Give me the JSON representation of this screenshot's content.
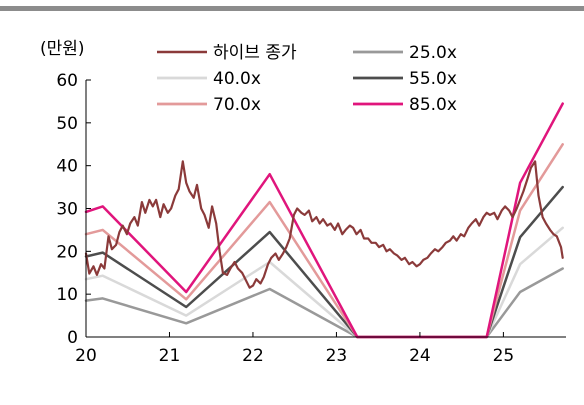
{
  "chart_data": {
    "type": "line",
    "title": "",
    "ylabel": "(만원)",
    "xlabel": "",
    "ylim": [
      0,
      60
    ],
    "xlim": [
      2020.0,
      2025.75
    ],
    "yticks": [
      0,
      10,
      20,
      30,
      40,
      50,
      60
    ],
    "ytick_labels": [
      "0",
      "10",
      "20",
      "30",
      "40",
      "50",
      "60"
    ],
    "xticks": [
      2020,
      2021,
      2022,
      2023,
      2024,
      2025
    ],
    "xtick_labels": [
      "20",
      "21",
      "22",
      "23",
      "24",
      "25"
    ],
    "grid": false,
    "legend_position": "top",
    "colors": {
      "top_rule": "#8c8c8c",
      "axis": "#000000"
    },
    "series": [
      {
        "name": "하이브 종가",
        "color": "#8b3a3a",
        "width": 2.2,
        "points": [
          [
            2020.0,
            19.5
          ],
          [
            2020.04,
            14.8
          ],
          [
            2020.09,
            16.5
          ],
          [
            2020.13,
            14.5
          ],
          [
            2020.18,
            17.0
          ],
          [
            2020.22,
            16.0
          ],
          [
            2020.27,
            23.5
          ],
          [
            2020.31,
            20.5
          ],
          [
            2020.36,
            21.5
          ],
          [
            2020.4,
            24.5
          ],
          [
            2020.44,
            26.0
          ],
          [
            2020.49,
            24.0
          ],
          [
            2020.53,
            26.5
          ],
          [
            2020.58,
            28.0
          ],
          [
            2020.62,
            26.0
          ],
          [
            2020.67,
            31.5
          ],
          [
            2020.71,
            29.0
          ],
          [
            2020.76,
            32.0
          ],
          [
            2020.8,
            30.5
          ],
          [
            2020.84,
            32.0
          ],
          [
            2020.89,
            28.0
          ],
          [
            2020.93,
            31.0
          ],
          [
            2020.98,
            29.0
          ],
          [
            2021.02,
            30.0
          ],
          [
            2021.07,
            33.0
          ],
          [
            2021.11,
            34.5
          ],
          [
            2021.16,
            41.0
          ],
          [
            2021.2,
            36.0
          ],
          [
            2021.24,
            34.0
          ],
          [
            2021.29,
            32.5
          ],
          [
            2021.33,
            35.5
          ],
          [
            2021.38,
            30.0
          ],
          [
            2021.42,
            28.5
          ],
          [
            2021.47,
            25.5
          ],
          [
            2021.51,
            30.5
          ],
          [
            2021.56,
            26.5
          ],
          [
            2021.6,
            20.0
          ],
          [
            2021.64,
            15.0
          ],
          [
            2021.69,
            14.5
          ],
          [
            2021.73,
            16.0
          ],
          [
            2021.78,
            17.5
          ],
          [
            2021.82,
            16.0
          ],
          [
            2021.87,
            15.0
          ],
          [
            2021.91,
            13.5
          ],
          [
            2021.96,
            11.5
          ],
          [
            2022.0,
            12.0
          ],
          [
            2022.04,
            13.5
          ],
          [
            2022.09,
            12.5
          ],
          [
            2022.13,
            14.0
          ],
          [
            2022.18,
            17.0
          ],
          [
            2022.22,
            18.5
          ],
          [
            2022.27,
            19.5
          ],
          [
            2022.31,
            18.0
          ],
          [
            2022.36,
            19.5
          ],
          [
            2022.4,
            21.0
          ],
          [
            2022.44,
            23.0
          ],
          [
            2022.49,
            28.5
          ],
          [
            2022.53,
            30.0
          ],
          [
            2022.58,
            29.0
          ],
          [
            2022.62,
            28.5
          ],
          [
            2022.67,
            29.5
          ],
          [
            2022.71,
            27.0
          ],
          [
            2022.76,
            28.0
          ],
          [
            2022.8,
            26.5
          ],
          [
            2022.84,
            27.5
          ],
          [
            2022.89,
            26.0
          ],
          [
            2022.93,
            26.5
          ],
          [
            2022.98,
            25.0
          ],
          [
            2023.02,
            26.5
          ],
          [
            2023.07,
            24.0
          ],
          [
            2023.11,
            25.0
          ],
          [
            2023.16,
            26.0
          ],
          [
            2023.2,
            25.5
          ],
          [
            2023.24,
            24.0
          ],
          [
            2023.29,
            25.0
          ],
          [
            2023.33,
            23.0
          ],
          [
            2023.38,
            23.0
          ],
          [
            2023.42,
            22.0
          ],
          [
            2023.47,
            22.0
          ],
          [
            2023.51,
            21.0
          ],
          [
            2023.56,
            21.5
          ],
          [
            2023.6,
            20.0
          ],
          [
            2023.64,
            20.5
          ],
          [
            2023.69,
            19.5
          ],
          [
            2023.73,
            19.0
          ],
          [
            2023.78,
            18.0
          ],
          [
            2023.82,
            18.5
          ],
          [
            2023.87,
            17.0
          ],
          [
            2023.91,
            17.5
          ],
          [
            2023.96,
            16.5
          ],
          [
            2024.0,
            17.0
          ],
          [
            2024.04,
            18.0
          ],
          [
            2024.09,
            18.5
          ],
          [
            2024.13,
            19.5
          ],
          [
            2024.18,
            20.5
          ],
          [
            2024.22,
            20.0
          ],
          [
            2024.27,
            21.0
          ],
          [
            2024.31,
            22.0
          ],
          [
            2024.36,
            22.5
          ],
          [
            2024.4,
            23.5
          ],
          [
            2024.44,
            22.5
          ],
          [
            2024.49,
            24.0
          ],
          [
            2024.53,
            23.5
          ],
          [
            2024.58,
            25.5
          ],
          [
            2024.62,
            26.5
          ],
          [
            2024.67,
            27.5
          ],
          [
            2024.71,
            26.0
          ],
          [
            2024.76,
            28.0
          ],
          [
            2024.8,
            29.0
          ],
          [
            2024.84,
            28.5
          ],
          [
            2024.89,
            29.0
          ],
          [
            2024.93,
            27.5
          ],
          [
            2024.98,
            29.5
          ],
          [
            2025.02,
            30.5
          ],
          [
            2025.07,
            29.5
          ],
          [
            2025.11,
            28.0
          ],
          [
            2025.16,
            30.0
          ],
          [
            2025.2,
            32.0
          ],
          [
            2025.24,
            34.0
          ],
          [
            2025.29,
            37.0
          ],
          [
            2025.33,
            39.5
          ],
          [
            2025.38,
            41.0
          ],
          [
            2025.42,
            33.0
          ],
          [
            2025.47,
            28.0
          ],
          [
            2025.51,
            26.5
          ],
          [
            2025.56,
            25.0
          ],
          [
            2025.6,
            24.0
          ],
          [
            2025.64,
            23.5
          ],
          [
            2025.69,
            21.0
          ],
          [
            2025.71,
            18.5
          ]
        ]
      },
      {
        "name": "25.0x",
        "color": "#999999",
        "width": 2.5,
        "points": [
          [
            2020.0,
            8.5
          ],
          [
            2020.2,
            9.0
          ],
          [
            2021.2,
            3.2
          ],
          [
            2022.2,
            11.2
          ],
          [
            2023.25,
            0
          ],
          [
            2024.8,
            0
          ],
          [
            2025.2,
            10.5
          ],
          [
            2025.71,
            16.0
          ]
        ]
      },
      {
        "name": "40.0x",
        "color": "#d9d9d9",
        "width": 2.5,
        "points": [
          [
            2020.0,
            13.5
          ],
          [
            2020.2,
            14.3
          ],
          [
            2021.2,
            5.0
          ],
          [
            2022.2,
            17.5
          ],
          [
            2023.25,
            0
          ],
          [
            2024.8,
            0
          ],
          [
            2025.2,
            17.0
          ],
          [
            2025.71,
            25.5
          ]
        ]
      },
      {
        "name": "55.0x",
        "color": "#4d4d4d",
        "width": 2.5,
        "points": [
          [
            2020.0,
            18.8
          ],
          [
            2020.2,
            19.7
          ],
          [
            2021.2,
            7.0
          ],
          [
            2022.2,
            24.5
          ],
          [
            2023.25,
            0
          ],
          [
            2024.8,
            0
          ],
          [
            2025.2,
            23.3
          ],
          [
            2025.71,
            35.0
          ]
        ]
      },
      {
        "name": "70.0x",
        "color": "#e39a9a",
        "width": 2.5,
        "points": [
          [
            2020.0,
            24.0
          ],
          [
            2020.2,
            25.0
          ],
          [
            2021.2,
            8.8
          ],
          [
            2022.2,
            31.5
          ],
          [
            2023.25,
            0
          ],
          [
            2024.8,
            0
          ],
          [
            2025.2,
            29.5
          ],
          [
            2025.71,
            45.0
          ]
        ]
      },
      {
        "name": "85.0x",
        "color": "#e0157c",
        "width": 2.5,
        "points": [
          [
            2020.0,
            29.2
          ],
          [
            2020.2,
            30.5
          ],
          [
            2021.2,
            10.5
          ],
          [
            2022.2,
            38.0
          ],
          [
            2023.25,
            0
          ],
          [
            2024.8,
            0
          ],
          [
            2025.2,
            36.0
          ],
          [
            2025.71,
            54.5
          ]
        ]
      }
    ]
  }
}
